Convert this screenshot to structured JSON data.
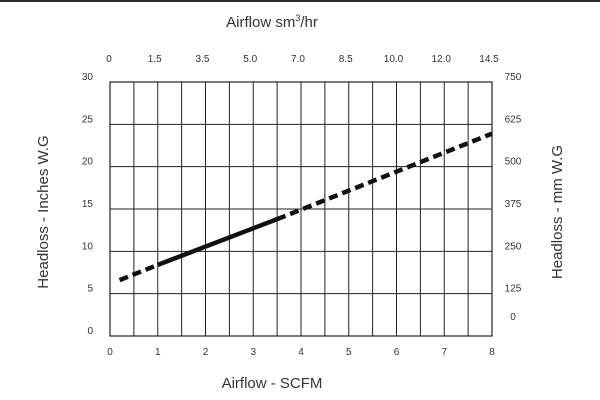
{
  "chart_data": {
    "type": "line",
    "x": [
      0.2,
      1.0,
      3.5,
      8.0
    ],
    "series": [
      {
        "values": [
          6.6,
          8.4,
          13.8,
          23.9
        ],
        "segments": [
          "dashed",
          "solid",
          "dashed"
        ]
      }
    ],
    "xlabel": "Airflow - SCFM",
    "xlim": [
      0,
      8
    ],
    "x_ticks": [
      "0",
      "1",
      "2",
      "3",
      "4",
      "5",
      "6",
      "7",
      "8"
    ],
    "x2label": "Airflow sm",
    "x2label_sup": "3",
    "x2label_suffix": "/hr",
    "x2_ticks": [
      "0",
      "1.5",
      "3.5",
      "5.0",
      "7.0",
      "8.5",
      "10.0",
      "12.0",
      "14.5"
    ],
    "ylabel": "Headloss - Inches W.G",
    "ylim": [
      0,
      30
    ],
    "y_ticks": [
      "0",
      "5",
      "10",
      "15",
      "20",
      "25",
      "30"
    ],
    "y2label": "Headloss - mm W.G",
    "y2_ticks": [
      "0",
      "125",
      "250",
      "375",
      "500",
      "625",
      "750"
    ],
    "grid": true,
    "colors": {
      "line": "#111111",
      "grid": "#222222",
      "text": "#333333"
    }
  }
}
